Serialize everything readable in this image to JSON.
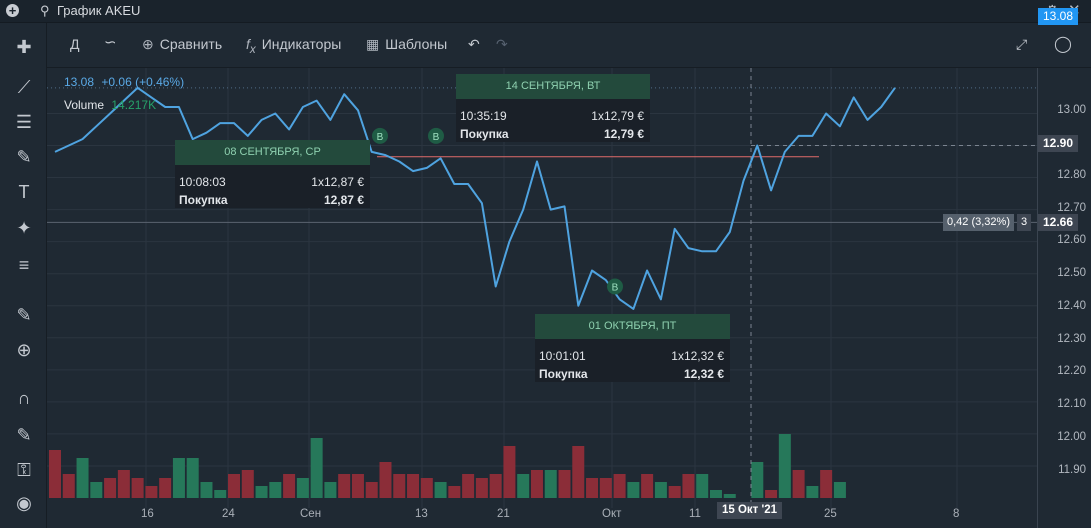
{
  "window": {
    "title": "График AKEU"
  },
  "toolbar": {
    "period": "Д",
    "compare": "Сравнить",
    "indicators": "Индикаторы",
    "templates": "Шаблоны"
  },
  "legend": {
    "price": "13.08",
    "change": "+0.06 (+0.46%)",
    "volume_label": "Volume",
    "volume_value": "14.217K"
  },
  "price_axis": {
    "labels": [
      "13.00",
      "12.80",
      "12.70",
      "12.60",
      "12.50",
      "12.40",
      "12.30",
      "12.20",
      "12.10",
      "12.00",
      "11.90"
    ],
    "current_price": "13.08",
    "crosshair_price": "12.90",
    "level_price": "12.66",
    "measure_label": "0,42 (3,32%)",
    "measure_count": "3"
  },
  "time_axis": {
    "labels": [
      "16",
      "24",
      "Сен",
      "13",
      "21",
      "Окт",
      "11",
      "25",
      "8"
    ],
    "crosshair_date": "15 Окт '21"
  },
  "trades": [
    {
      "head": "08 СЕНТЯБРЯ, СР",
      "time": "10:08:03",
      "qty": "1x12,87 €",
      "side": "Покупка",
      "total": "12,87 €"
    },
    {
      "head": "14 СЕНТЯБРЯ, ВТ",
      "time": "10:35:19",
      "qty": "1x12,79 €",
      "side": "Покупка",
      "total": "12,79 €"
    },
    {
      "head": "01 ОКТЯБРЯ, ПТ",
      "time": "10:01:01",
      "qty": "1x12,32 €",
      "side": "Покупка",
      "total": "12,32 €"
    }
  ],
  "markers": {
    "buy": "B"
  },
  "colors": {
    "line": "#4fa3e0",
    "up_volume": "#26785a",
    "down_volume": "#8b2d38",
    "level_line": "#e06b6b",
    "tooltip_head": "#234a3c",
    "price_tag": "#2196f3"
  },
  "chart_data": {
    "type": "line",
    "ylim": [
      11.85,
      13.12
    ],
    "price": [
      12.88,
      12.9,
      12.92,
      12.96,
      13.0,
      13.04,
      13.08,
      13.05,
      13.02,
      13.02,
      12.92,
      12.94,
      12.97,
      12.97,
      12.93,
      12.98,
      13.0,
      12.95,
      13.02,
      13.04,
      12.98,
      13.06,
      13.01,
      12.88,
      12.87,
      12.85,
      12.82,
      12.83,
      12.86,
      12.78,
      12.78,
      12.72,
      12.46,
      12.6,
      12.7,
      12.85,
      12.7,
      12.71,
      12.4,
      12.51,
      12.48,
      12.42,
      12.39,
      12.51,
      12.42,
      12.64,
      12.58,
      12.57,
      12.57,
      12.63,
      12.79,
      12.9,
      12.76,
      12.88,
      12.93,
      12.93,
      13.0,
      12.96,
      13.05,
      12.98,
      13.02,
      13.08
    ],
    "volume_up": [
      null,
      null,
      1,
      0.4,
      null,
      null,
      null,
      null,
      null,
      1,
      1,
      0.4,
      0.2,
      null,
      null,
      0.3,
      0.4,
      null,
      0.5,
      1.5,
      0.4,
      null,
      null,
      null,
      null,
      null,
      null,
      null,
      0.4,
      null,
      null,
      null,
      null,
      null,
      0.6,
      null,
      0.7,
      null,
      null,
      null,
      null,
      null,
      0.4,
      null,
      0.4,
      null,
      null,
      0.6,
      0.2,
      0.1,
      null,
      0.9,
      null,
      1.6,
      null,
      0.3,
      null,
      0.4,
      null,
      null,
      null,
      null
    ],
    "volume_down": [
      1.2,
      0.6,
      null,
      null,
      0.5,
      0.7,
      0.5,
      0.3,
      0.5,
      null,
      null,
      null,
      null,
      0.6,
      0.7,
      null,
      null,
      0.6,
      null,
      null,
      null,
      0.6,
      0.6,
      0.4,
      0.9,
      0.6,
      0.6,
      0.5,
      null,
      0.3,
      0.6,
      0.5,
      0.6,
      1.3,
      null,
      0.7,
      null,
      0.7,
      1.3,
      0.5,
      0.5,
      0.6,
      null,
      0.6,
      null,
      0.3,
      0.6,
      null,
      null,
      null,
      null,
      null,
      0.2,
      null,
      0.7,
      null,
      0.7,
      null,
      null,
      null,
      null,
      null
    ]
  }
}
